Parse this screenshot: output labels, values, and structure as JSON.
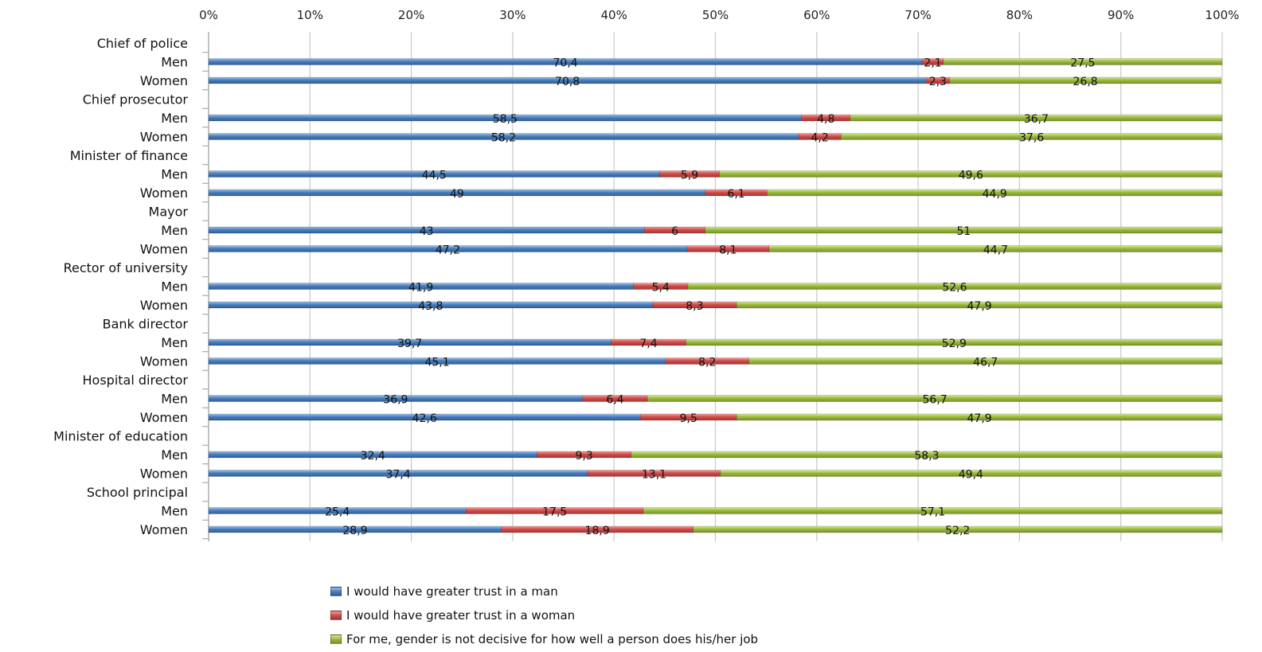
{
  "chart_data": {
    "type": "bar",
    "orientation": "horizontal",
    "stacked": true,
    "x_ticks": [
      "0%",
      "10%",
      "20%",
      "30%",
      "40%",
      "50%",
      "60%",
      "70%",
      "80%",
      "90%",
      "100%"
    ],
    "xlim": [
      0,
      100
    ],
    "groups": [
      {
        "label": "Chief of police",
        "rows": [
          {
            "label": "Men",
            "values": [
              70.4,
              2.1,
              27.5
            ],
            "labels": [
              "70,4",
              "2,1",
              "27,5"
            ]
          },
          {
            "label": "Women",
            "values": [
              70.8,
              2.3,
              26.8
            ],
            "labels": [
              "70,8",
              "2,3",
              "26,8"
            ]
          }
        ]
      },
      {
        "label": "Chief prosecutor",
        "rows": [
          {
            "label": "Men",
            "values": [
              58.5,
              4.8,
              36.7
            ],
            "labels": [
              "58,5",
              "4,8",
              "36,7"
            ]
          },
          {
            "label": "Women",
            "values": [
              58.2,
              4.2,
              37.6
            ],
            "labels": [
              "58,2",
              "4,2",
              "37,6"
            ]
          }
        ]
      },
      {
        "label": "Minister of finance",
        "rows": [
          {
            "label": "Men",
            "values": [
              44.5,
              5.9,
              49.6
            ],
            "labels": [
              "44,5",
              "5,9",
              "49,6"
            ]
          },
          {
            "label": "Women",
            "values": [
              49,
              6.1,
              44.9
            ],
            "labels": [
              "49",
              "6,1",
              "44,9"
            ]
          }
        ]
      },
      {
        "label": "Mayor",
        "rows": [
          {
            "label": "Men",
            "values": [
              43,
              6,
              51
            ],
            "labels": [
              "43",
              "6",
              "51"
            ]
          },
          {
            "label": "Women",
            "values": [
              47.2,
              8.1,
              44.7
            ],
            "labels": [
              "47,2",
              "8,1",
              "44,7"
            ]
          }
        ]
      },
      {
        "label": "Rector of university",
        "rows": [
          {
            "label": "Men",
            "values": [
              41.9,
              5.4,
              52.6
            ],
            "labels": [
              "41,9",
              "5,4",
              "52,6"
            ]
          },
          {
            "label": "Women",
            "values": [
              43.8,
              8.3,
              47.9
            ],
            "labels": [
              "43,8",
              "8,3",
              "47,9"
            ]
          }
        ]
      },
      {
        "label": "Bank director",
        "rows": [
          {
            "label": "Men",
            "values": [
              39.7,
              7.4,
              52.9
            ],
            "labels": [
              "39,7",
              "7,4",
              "52,9"
            ]
          },
          {
            "label": "Women",
            "values": [
              45.1,
              8.2,
              46.7
            ],
            "labels": [
              "45,1",
              "8,2",
              "46,7"
            ]
          }
        ]
      },
      {
        "label": "Hospital director",
        "rows": [
          {
            "label": "Men",
            "values": [
              36.9,
              6.4,
              56.7
            ],
            "labels": [
              "36,9",
              "6,4",
              "56,7"
            ]
          },
          {
            "label": "Women",
            "values": [
              42.6,
              9.5,
              47.9
            ],
            "labels": [
              "42,6",
              "9,5",
              "47,9"
            ]
          }
        ]
      },
      {
        "label": "Minister of education",
        "rows": [
          {
            "label": "Men",
            "values": [
              32.4,
              9.3,
              58.3
            ],
            "labels": [
              "32,4",
              "9,3",
              "58,3"
            ]
          },
          {
            "label": "Women",
            "values": [
              37.4,
              13.1,
              49.4
            ],
            "labels": [
              "37,4",
              "13,1",
              "49,4"
            ]
          }
        ]
      },
      {
        "label": "School principal",
        "rows": [
          {
            "label": "Men",
            "values": [
              25.4,
              17.5,
              57.1
            ],
            "labels": [
              "25,4",
              "17,5",
              "57,1"
            ]
          },
          {
            "label": "Women",
            "values": [
              28.9,
              18.9,
              52.2
            ],
            "labels": [
              "28,9",
              "18,9",
              "52,2"
            ]
          }
        ]
      }
    ],
    "series": [
      {
        "name": "I would have greater trust in a man",
        "color": "#4a7ebb"
      },
      {
        "name": "I would have greater trust in a woman",
        "color": "#d24c4a"
      },
      {
        "name": "For me, gender is not decisive for how well a person does his/her job",
        "color": "#9bbb3c"
      }
    ],
    "grid": true,
    "legend_position": "bottom"
  }
}
